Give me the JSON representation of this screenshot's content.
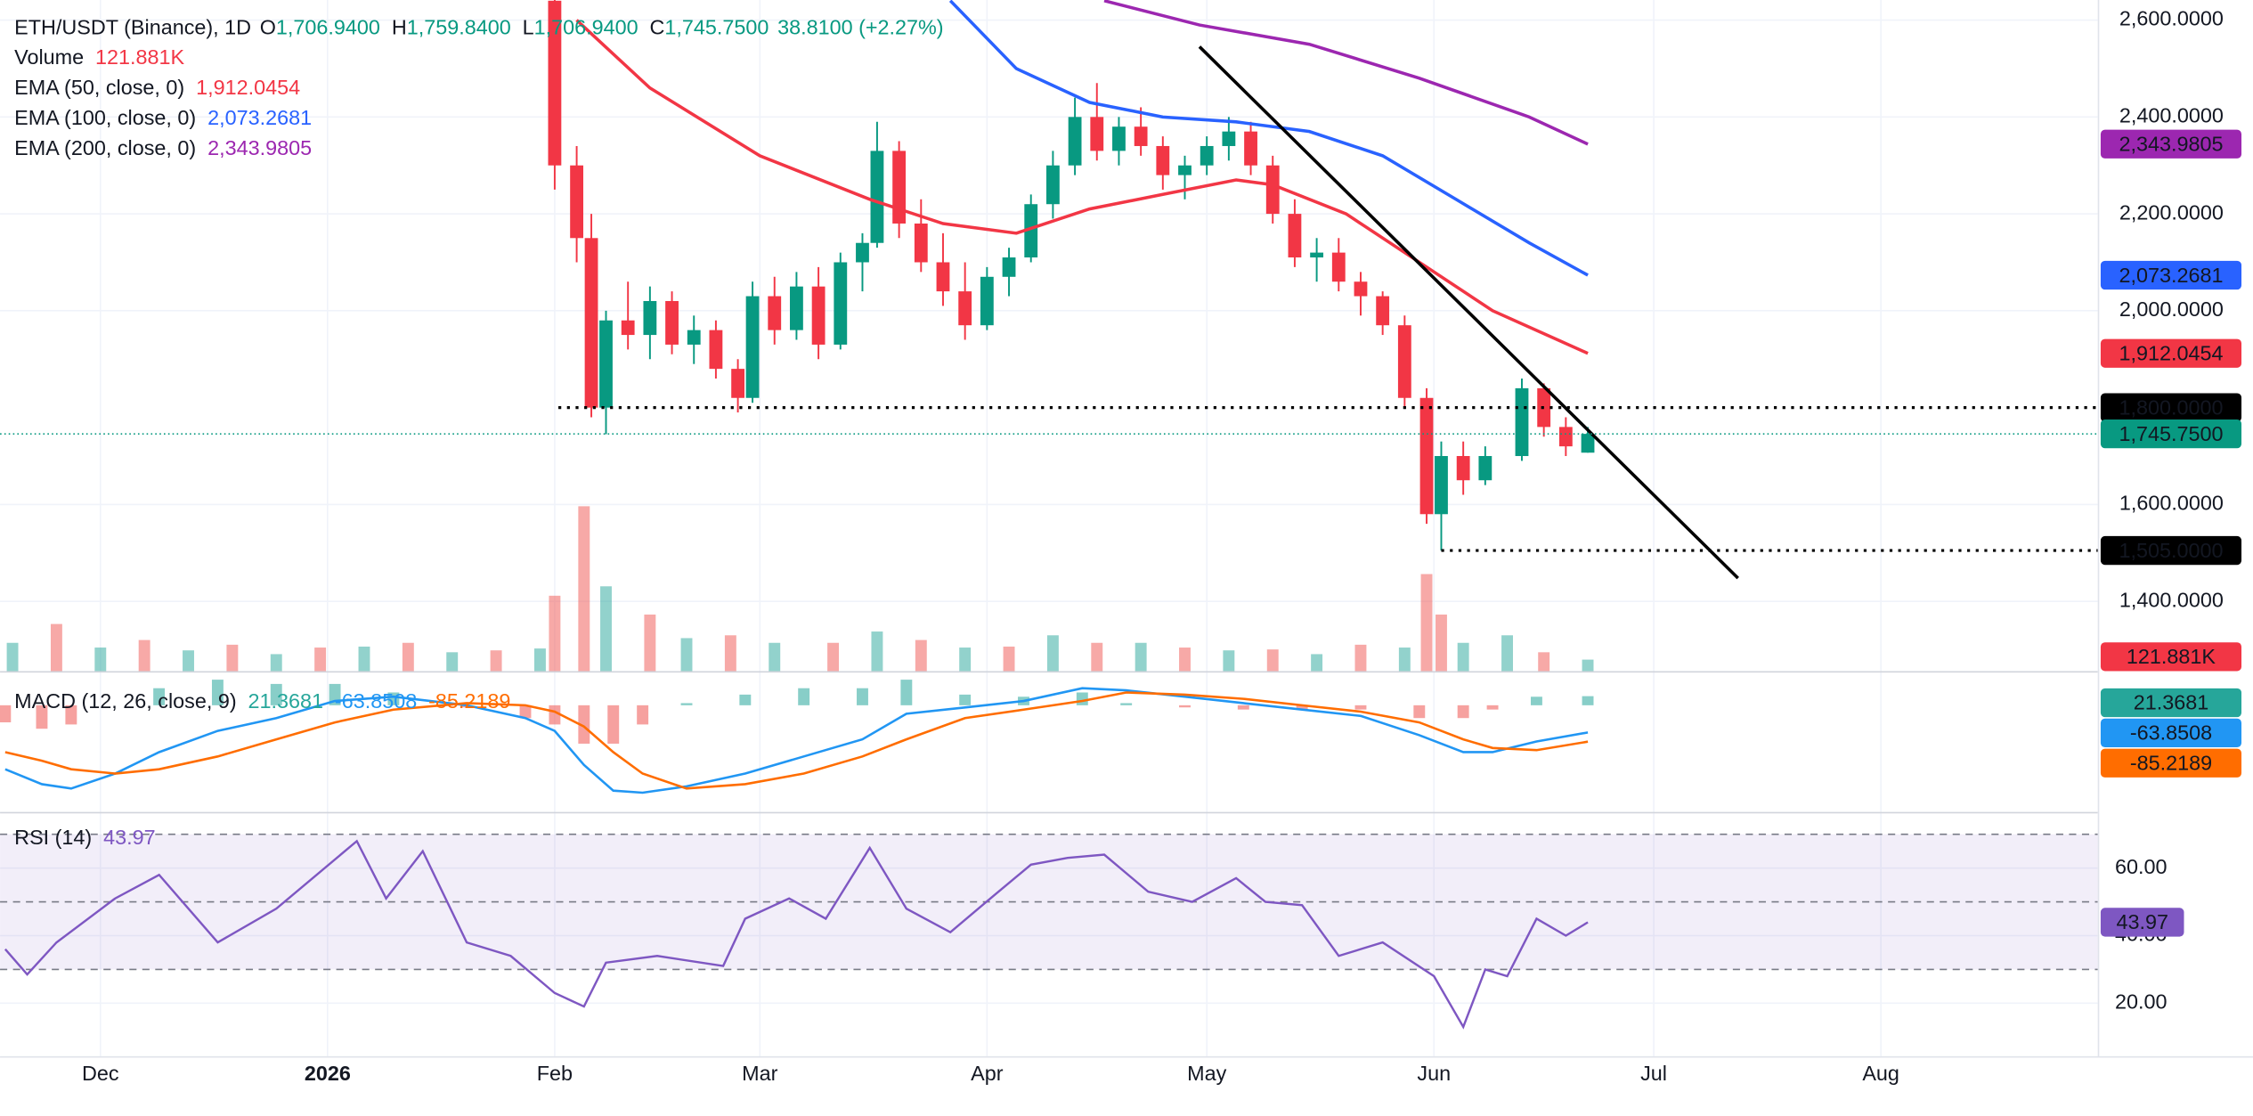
{
  "chart_data": [
    {
      "type": "candlestick",
      "title": "ETH/USDT (Binance), 1D",
      "header_keys": [
        "O",
        "H",
        "L",
        "C"
      ],
      "header_values": [
        "1,706.9400",
        "1,759.8400",
        "1,706.9400",
        "1,745.7500"
      ],
      "change": "38.8100 (+2.27%)",
      "up_color": "#089981",
      "down_color": "#f23645",
      "grid": true,
      "xlim": [
        -13.7,
        272.6
      ],
      "xticks": [
        {
          "value": 0,
          "label": "Dec"
        },
        {
          "value": 31,
          "label": "2026"
        },
        {
          "value": 62,
          "label": "Feb"
        },
        {
          "value": 90,
          "label": "Mar"
        },
        {
          "value": 121,
          "label": "Apr"
        },
        {
          "value": 151,
          "label": "May"
        },
        {
          "value": 182,
          "label": "Jun"
        },
        {
          "value": 212,
          "label": "Jul"
        },
        {
          "value": 243,
          "label": "Aug"
        }
      ],
      "ylim": [
        1256,
        2641.5
      ],
      "yticks": [
        {
          "value": 2600,
          "label": "2,600.0000"
        },
        {
          "value": 2400,
          "label": "2,400.0000"
        },
        {
          "value": 2200,
          "label": "2,200.0000"
        },
        {
          "value": 2000,
          "label": "2,000.0000"
        },
        {
          "value": 1600,
          "label": "1,600.0000"
        },
        {
          "value": 1400,
          "label": "1,400.0000"
        }
      ],
      "x": [
        62,
        65,
        67,
        69,
        72,
        75,
        78,
        81,
        84,
        87,
        89,
        92,
        95,
        98,
        101,
        104,
        106,
        109,
        112,
        115,
        118,
        121,
        124,
        127,
        130,
        133,
        136,
        139,
        142,
        145,
        148,
        151,
        154,
        157,
        160,
        163,
        166,
        169,
        172,
        175,
        178,
        181,
        183,
        186,
        189,
        194,
        197,
        200,
        203
      ],
      "open": [
        2640,
        2300,
        2150,
        1800,
        1980,
        1950,
        2020,
        1930,
        1960,
        1880,
        1820,
        2030,
        1960,
        2050,
        1930,
        2100,
        2140,
        2330,
        2180,
        2100,
        2040,
        1970,
        2070,
        2110,
        2220,
        2300,
        2400,
        2330,
        2380,
        2340,
        2280,
        2300,
        2340,
        2370,
        2300,
        2200,
        2110,
        2120,
        2060,
        2030,
        1970,
        1820,
        1580,
        1700,
        1650,
        1700,
        1840,
        1760,
        1706.94
      ],
      "high": [
        2660,
        2340,
        2200,
        2000,
        2060,
        2050,
        2040,
        1990,
        1980,
        1900,
        2060,
        2070,
        2080,
        2090,
        2120,
        2160,
        2390,
        2350,
        2230,
        2160,
        2100,
        2090,
        2130,
        2240,
        2330,
        2440,
        2470,
        2400,
        2420,
        2360,
        2320,
        2360,
        2400,
        2390,
        2320,
        2230,
        2150,
        2150,
        2080,
        2040,
        1990,
        1840,
        1730,
        1730,
        1720,
        1860,
        1850,
        1780,
        1759.84
      ],
      "low": [
        2250,
        2100,
        1780,
        1745,
        1920,
        1900,
        1910,
        1890,
        1860,
        1790,
        1810,
        1930,
        1940,
        1900,
        1920,
        2040,
        2130,
        2150,
        2080,
        2010,
        1940,
        1960,
        2030,
        2100,
        2190,
        2280,
        2310,
        2300,
        2320,
        2250,
        2230,
        2280,
        2310,
        2280,
        2180,
        2090,
        2060,
        2040,
        1990,
        1950,
        1800,
        1560,
        1505,
        1620,
        1640,
        1690,
        1740,
        1700,
        1706.94
      ],
      "close": [
        2300,
        2150,
        1800,
        1980,
        1950,
        2020,
        1930,
        1960,
        1880,
        1820,
        2030,
        1960,
        2050,
        1930,
        2100,
        2140,
        2330,
        2180,
        2100,
        2040,
        1970,
        2070,
        2110,
        2220,
        2300,
        2400,
        2330,
        2380,
        2340,
        2280,
        2300,
        2340,
        2370,
        2300,
        2200,
        2110,
        2120,
        2060,
        2030,
        1970,
        1820,
        1580,
        1700,
        1650,
        1700,
        1840,
        1760,
        1720,
        1745.75
      ],
      "last": {
        "value": 1745.75,
        "label": "1,745.7500"
      },
      "overlays": [
        {
          "name": "EMA (50, close, 0)",
          "value_label": "1,912.0454",
          "color": "#f23645",
          "x": [
            65,
            75,
            90,
            105,
            115,
            125,
            135,
            145,
            155,
            160,
            170,
            180,
            190,
            203
          ],
          "values": [
            2600,
            2460,
            2320,
            2230,
            2180,
            2160,
            2210,
            2240,
            2270,
            2260,
            2200,
            2100,
            2000,
            1912.0454
          ]
        },
        {
          "name": "EMA (100, close, 0)",
          "value_label": "2,073.2681",
          "color": "#2962ff",
          "x": [
            116,
            125,
            135,
            145,
            155,
            165,
            175,
            185,
            195,
            203
          ],
          "values": [
            2640,
            2500,
            2430,
            2400,
            2390,
            2370,
            2320,
            2230,
            2140,
            2073.2681
          ]
        },
        {
          "name": "EMA (200, close, 0)",
          "value_label": "2,343.9805",
          "color": "#9c27b0",
          "x": [
            137,
            150,
            165,
            180,
            195,
            203
          ],
          "values": [
            2640,
            2590,
            2550,
            2480,
            2400,
            2343.9805
          ]
        }
      ],
      "trendline": {
        "x": [
          150,
          223.5
        ],
        "values": [
          2545,
          1448
        ],
        "color": "#000000"
      },
      "levels": [
        {
          "x": 62.5,
          "value": 1800,
          "label": "1,800.0000"
        },
        {
          "x": 183,
          "value": 1505,
          "label": "1,505.0000"
        }
      ]
    },
    {
      "type": "bar",
      "title": "Volume",
      "value_label": "121.881K",
      "value_color": "#f23645",
      "ylim": [
        0,
        1800
      ],
      "up": {
        "color": "#26a69a",
        "x": [
          -12,
          0,
          12,
          24,
          36,
          48,
          60,
          69,
          80,
          92,
          106,
          118,
          130,
          142,
          154,
          166,
          178,
          186,
          192,
          203
        ],
        "values": [
          300,
          250,
          220,
          180,
          260,
          200,
          240,
          900,
          350,
          300,
          420,
          250,
          380,
          300,
          220,
          180,
          250,
          300,
          380,
          121.881
        ]
      },
      "down": {
        "color": "#ef5350",
        "x": [
          -6,
          6,
          18,
          30,
          42,
          54,
          62,
          66,
          75,
          86,
          100,
          112,
          124,
          136,
          148,
          160,
          172,
          181,
          183,
          197
        ],
        "values": [
          500,
          330,
          280,
          250,
          300,
          220,
          800,
          1750,
          600,
          380,
          300,
          330,
          260,
          300,
          250,
          230,
          280,
          1030,
          600,
          200
        ]
      }
    },
    {
      "type": "line",
      "title": "MACD (12, 26, close, 9)",
      "ylim": [
        -250,
        70
      ],
      "x": [
        -13,
        -8,
        -4,
        2,
        8,
        16,
        24,
        32,
        40,
        50,
        58,
        62,
        66,
        70,
        74,
        80,
        88,
        96,
        104,
        110,
        118,
        126,
        134,
        140,
        148,
        156,
        164,
        172,
        180,
        186,
        190,
        196,
        203
      ],
      "histogram": {
        "value_label": "21.3681",
        "color": "#26a69a",
        "negative_color": "#ef5350",
        "values": [
          -40,
          -55,
          -45,
          0,
          40,
          60,
          50,
          50,
          30,
          -5,
          -30,
          -45,
          -90,
          -90,
          -45,
          5,
          25,
          40,
          40,
          60,
          25,
          20,
          30,
          5,
          -5,
          -10,
          -10,
          -10,
          -30,
          -30,
          -10,
          20,
          21.3681
        ]
      },
      "macd": {
        "value_label": "-63.8508",
        "color": "#2196f3",
        "values": [
          -150,
          -185,
          -195,
          -160,
          -110,
          -60,
          -30,
          10,
          20,
          0,
          -30,
          -60,
          -140,
          -200,
          -205,
          -190,
          -160,
          -120,
          -80,
          -20,
          -5,
          10,
          40,
          35,
          20,
          5,
          -10,
          -25,
          -70,
          -110,
          -110,
          -85,
          -63.8508
        ]
      },
      "signal": {
        "value_label": "-85.2189",
        "color": "#ff6d00",
        "values": [
          -110,
          -130,
          -150,
          -160,
          -150,
          -120,
          -80,
          -40,
          -10,
          5,
          0,
          -15,
          -50,
          -110,
          -160,
          -195,
          -185,
          -160,
          -120,
          -80,
          -30,
          -10,
          10,
          30,
          25,
          15,
          0,
          -15,
          -40,
          -80,
          -100,
          -105,
          -85.2189
        ]
      }
    },
    {
      "type": "line",
      "title": "RSI (14)",
      "value_label": "43.97",
      "color": "#7e57c2",
      "ylim": [
        4.3,
        74.5
      ],
      "yticks": [
        {
          "value": 60,
          "label": "60.00"
        },
        {
          "value": 40,
          "label": "40.00"
        },
        {
          "value": 20,
          "label": "20.00"
        }
      ],
      "bands": [
        70,
        50,
        30
      ],
      "x": [
        -13,
        -10,
        -6,
        2,
        8,
        16,
        24,
        35,
        39,
        44,
        50,
        56,
        62,
        66,
        69,
        76,
        85,
        88,
        94,
        99,
        105,
        110,
        116,
        122,
        127,
        132,
        137,
        143,
        149,
        155,
        159,
        164,
        169,
        175,
        182,
        186,
        189,
        192,
        196,
        200,
        203
      ],
      "values": [
        36,
        28.5,
        38,
        51,
        58,
        38,
        48,
        68,
        51,
        65,
        38,
        34,
        23,
        19,
        32,
        34,
        31,
        45,
        51,
        45,
        66,
        48,
        41,
        52,
        61,
        63,
        64,
        53,
        50,
        57,
        50,
        49,
        34,
        38,
        28,
        13,
        30,
        28,
        45,
        40,
        43.97
      ]
    }
  ]
}
